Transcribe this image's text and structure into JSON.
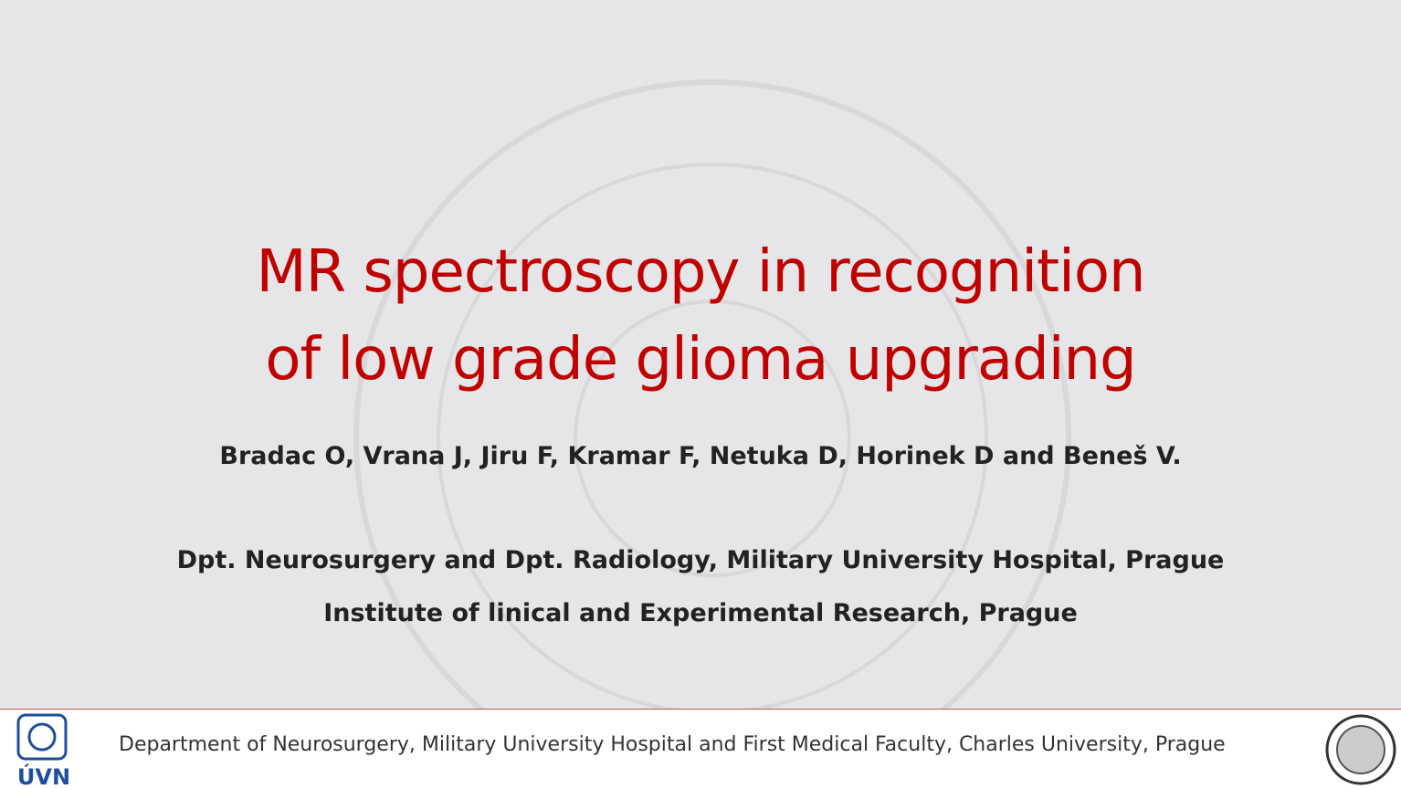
{
  "title": {
    "line1": "MR spectroscopy in recognition",
    "line2": "of low grade glioma upgrading"
  },
  "authors": "Bradac O, Vrana J, Jiru F, Kramar F, Netuka D, Horinek D and Beneš V.",
  "affiliations": [
    "Dpt. Neurosurgery and Dpt. Radiology, Military University Hospital, Prague",
    "Institute of linical and Experimental Research, Prague"
  ],
  "footer": {
    "text": "Department of Neurosurgery, Military University Hospital and First Medical Faculty, Charles University, Prague",
    "logo_text": "ÚVN"
  }
}
